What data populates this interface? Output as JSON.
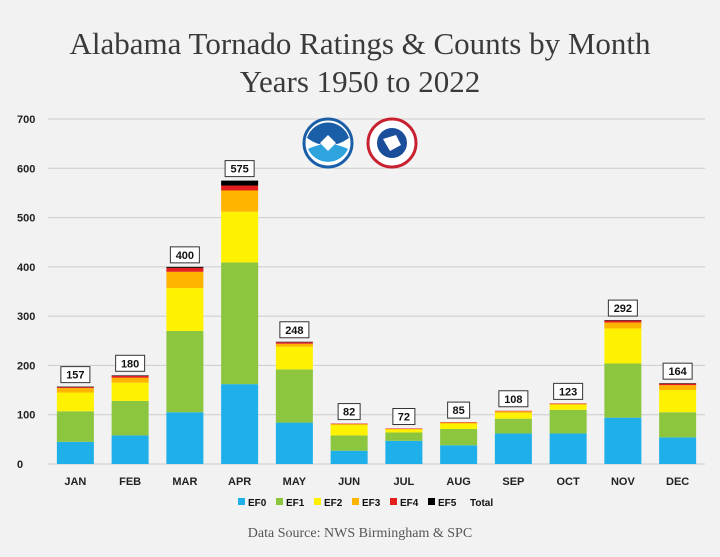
{
  "title_line1": "Alabama Tornado Ratings & Counts by Month",
  "title_line2": "Years 1950 to 2022",
  "source": "Data Source: NWS Birmingham & SPC",
  "colors": {
    "EF0": "#1fb0ea",
    "EF1": "#8cc63f",
    "EF2": "#fff200",
    "EF3": "#ffb400",
    "EF4": "#e51e1e",
    "EF5": "#000000",
    "grid": "#cccccc",
    "background": "#f2f2f2"
  },
  "logos": [
    "noaa-logo",
    "national-weather-service-logo"
  ],
  "chart_data": {
    "type": "bar",
    "stacked": true,
    "categories": [
      "JAN",
      "FEB",
      "MAR",
      "APR",
      "MAY",
      "JUN",
      "JUL",
      "AUG",
      "SEP",
      "OCT",
      "NOV",
      "DEC"
    ],
    "ylim": [
      0,
      700
    ],
    "yticks": [
      0,
      100,
      200,
      300,
      400,
      500,
      600,
      700
    ],
    "grid": true,
    "legend_position": "bottom",
    "series": [
      {
        "name": "EF0",
        "values": [
          45,
          58,
          105,
          162,
          84,
          27,
          47,
          38,
          62,
          62,
          94,
          54
        ]
      },
      {
        "name": "EF1",
        "values": [
          62,
          70,
          165,
          247,
          108,
          31,
          17,
          33,
          30,
          48,
          110,
          51
        ]
      },
      {
        "name": "EF2",
        "values": [
          38,
          37,
          87,
          103,
          46,
          21,
          6,
          11,
          12,
          10,
          71,
          45
        ]
      },
      {
        "name": "EF3",
        "values": [
          9,
          10,
          33,
          43,
          6,
          2,
          1,
          2,
          3,
          2,
          12,
          10
        ]
      },
      {
        "name": "EF4",
        "values": [
          2,
          4,
          8,
          10,
          3,
          1,
          1,
          1,
          1,
          1,
          4,
          3
        ]
      },
      {
        "name": "EF5",
        "values": [
          1,
          1,
          2,
          10,
          1,
          0,
          0,
          0,
          0,
          0,
          1,
          1
        ]
      }
    ],
    "legend_extra": "Total",
    "totals": [
      157,
      180,
      400,
      575,
      248,
      82,
      72,
      85,
      108,
      123,
      292,
      164
    ]
  }
}
